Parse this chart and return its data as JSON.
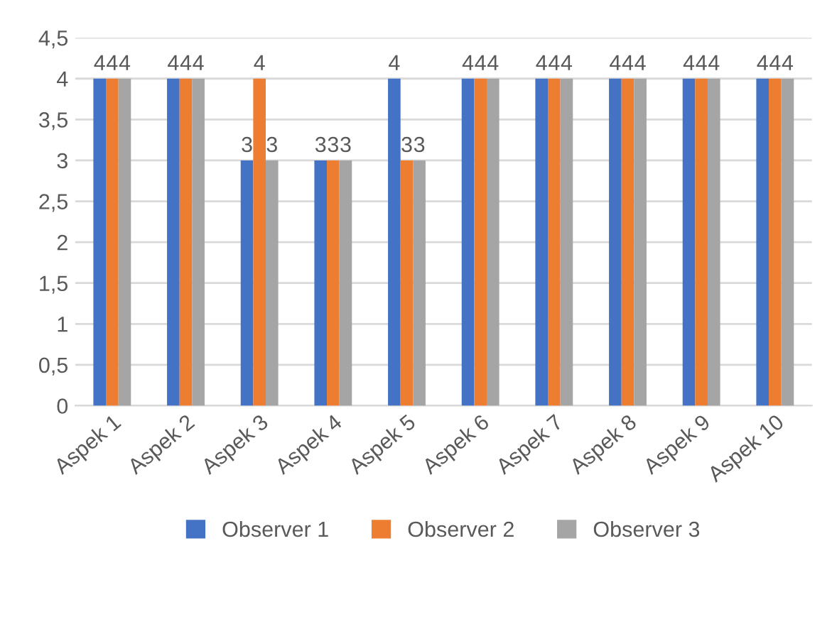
{
  "chart_data": {
    "type": "bar",
    "categories": [
      "Aspek 1",
      "Aspek 2",
      "Aspek 3",
      "Aspek 4",
      "Aspek 5",
      "Aspek 6",
      "Aspek 7",
      "Aspek 8",
      "Aspek 9",
      "Aspek 10"
    ],
    "series": [
      {
        "name": "Observer 1",
        "color": "#4472c4",
        "values": [
          4,
          4,
          3,
          3,
          4,
          4,
          4,
          4,
          4,
          4
        ]
      },
      {
        "name": "Observer 2",
        "color": "#ed7d31",
        "values": [
          4,
          4,
          4,
          3,
          3,
          4,
          4,
          4,
          4,
          4
        ]
      },
      {
        "name": "Observer 3",
        "color": "#a5a5a5",
        "values": [
          4,
          4,
          3,
          3,
          3,
          4,
          4,
          4,
          4,
          4
        ]
      }
    ],
    "ylim": [
      0,
      4.5
    ],
    "yticks": [
      0,
      {
        "value": 0.5,
        "label": "0,5"
      },
      1,
      {
        "value": 1.5,
        "label": "1,5"
      },
      2,
      {
        "value": 2.5,
        "label": "2,5"
      },
      3,
      {
        "value": 3.5,
        "label": "3,5"
      },
      4,
      {
        "value": 4.5,
        "label": "4,5"
      }
    ],
    "grid": "y",
    "legend": "bottom",
    "data_labels": true
  }
}
